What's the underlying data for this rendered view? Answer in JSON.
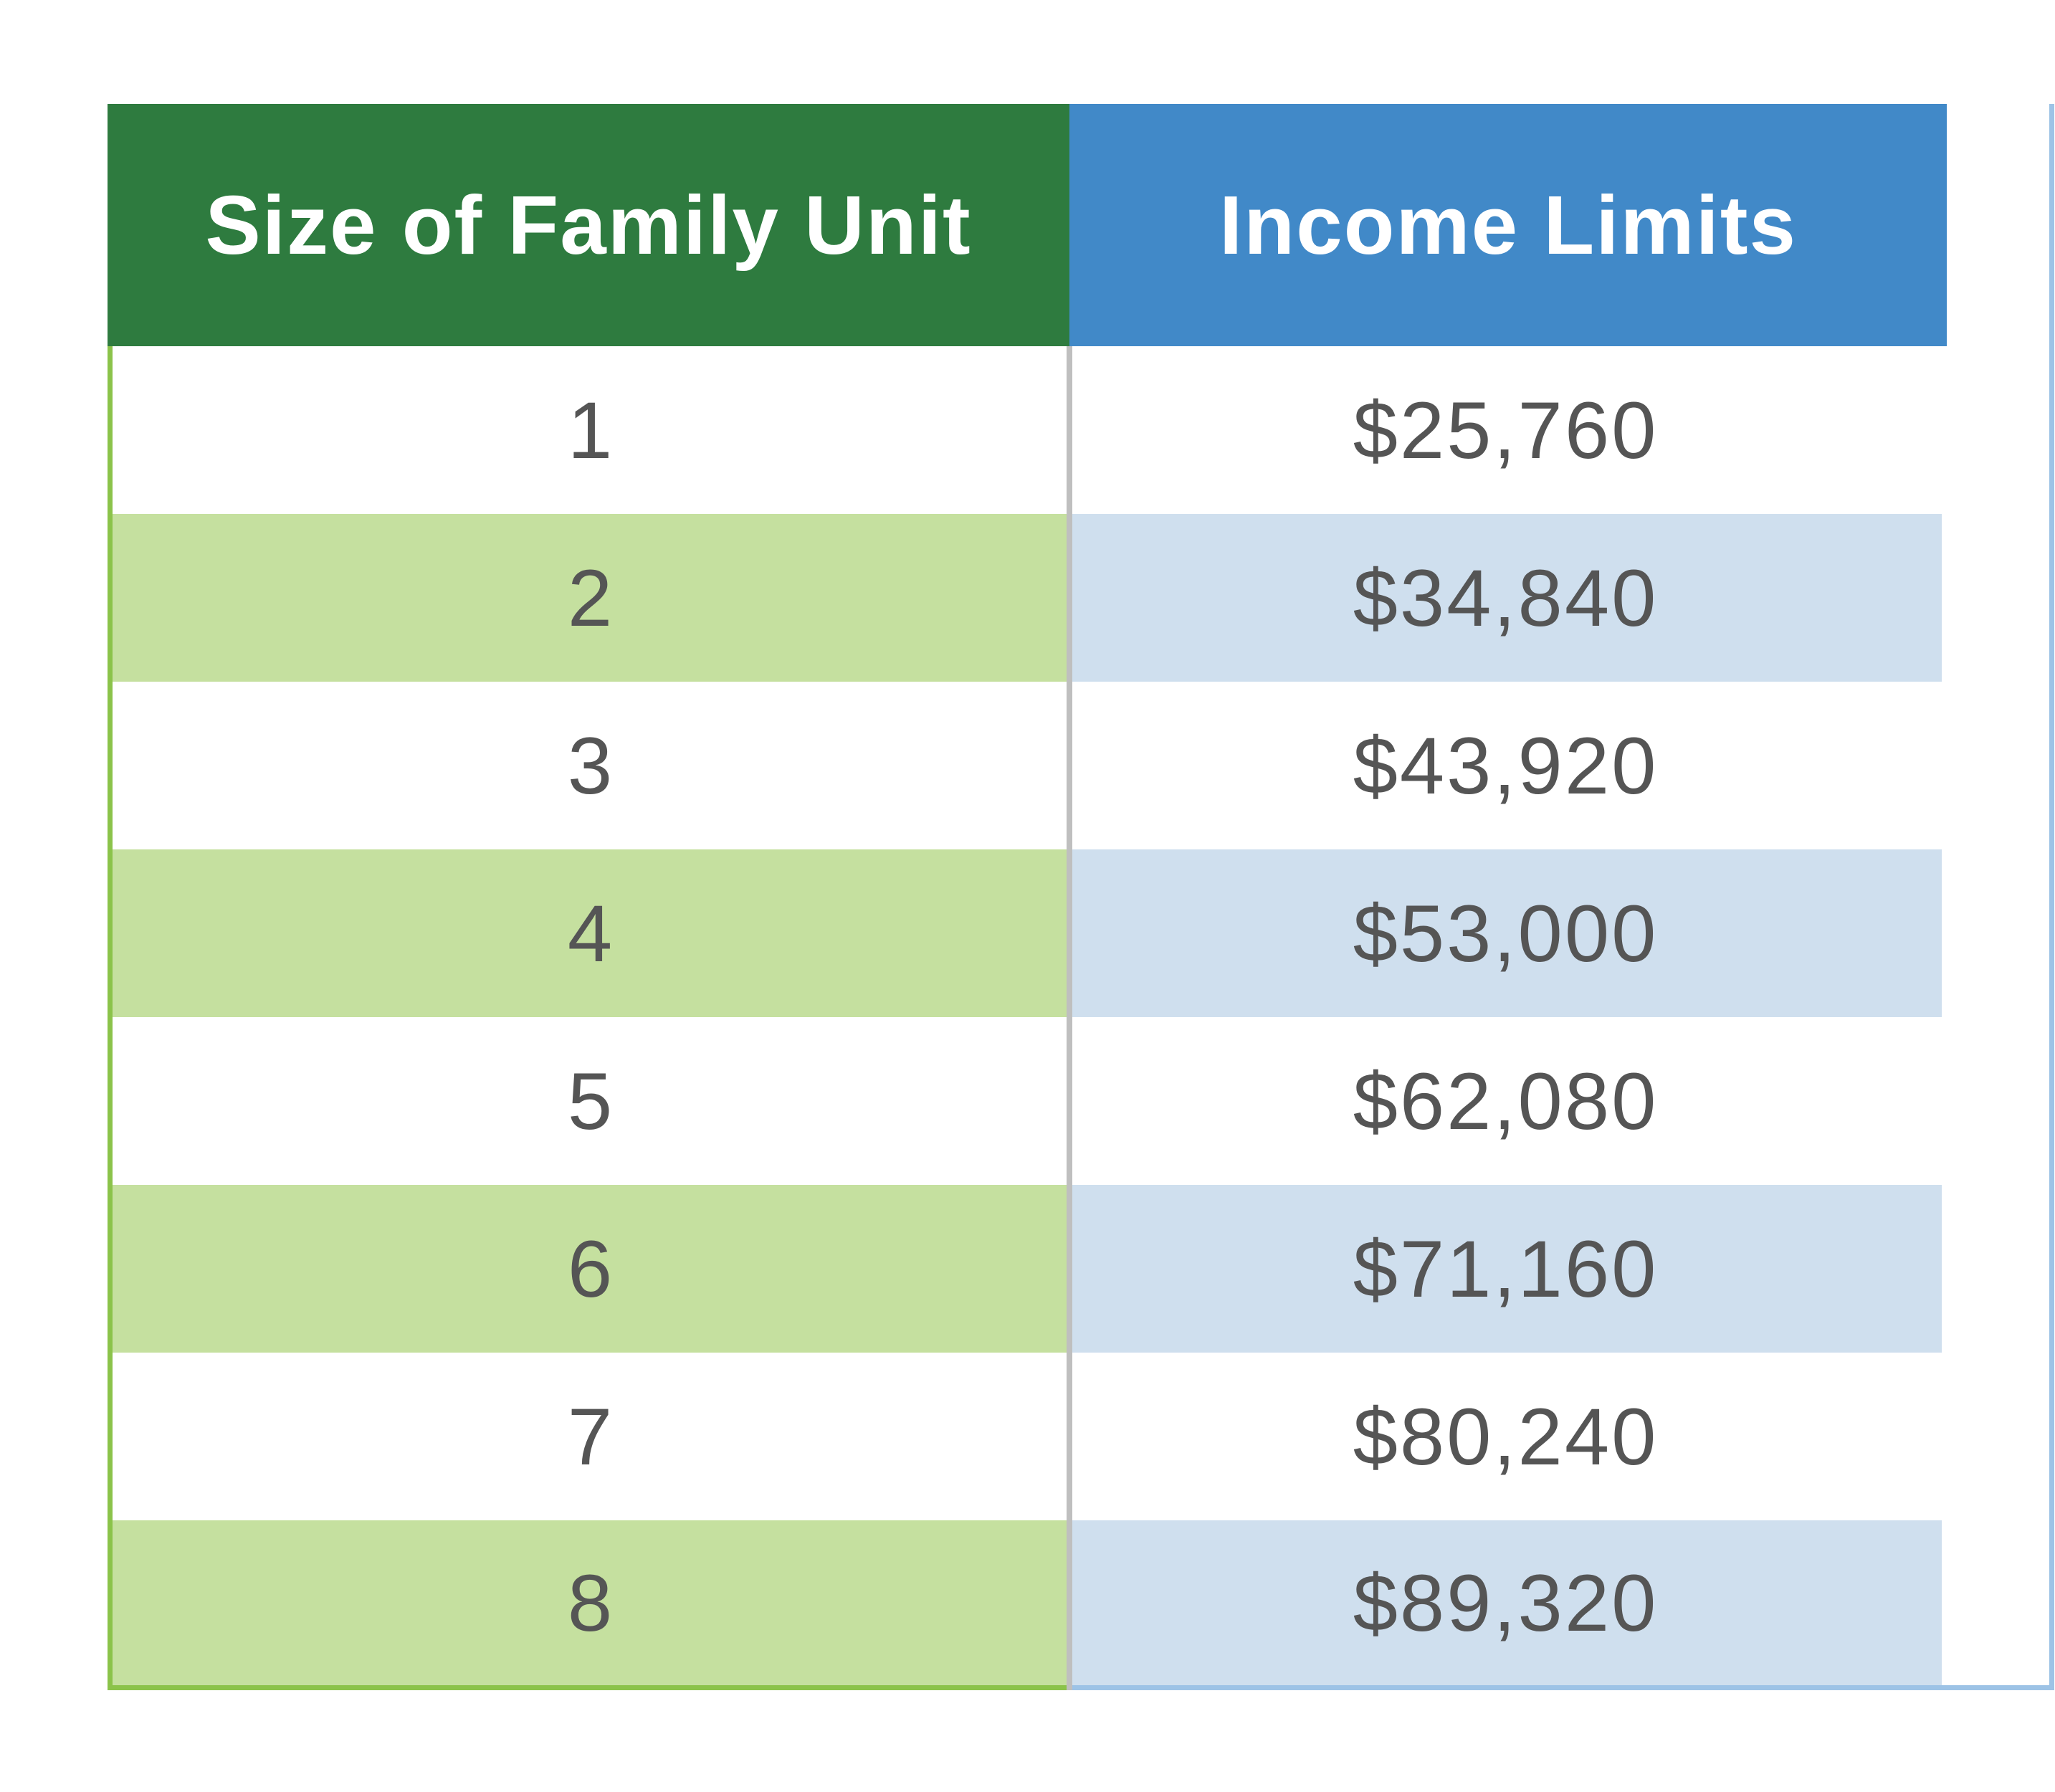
{
  "table": {
    "headers": [
      "Size of Family Unit",
      "Income Limits"
    ],
    "rows": [
      {
        "size": "1",
        "limit": "$25,760"
      },
      {
        "size": "2",
        "limit": "$34,840"
      },
      {
        "size": "3",
        "limit": "$43,920"
      },
      {
        "size": "4",
        "limit": "$53,000"
      },
      {
        "size": "5",
        "limit": "$62,080"
      },
      {
        "size": "6",
        "limit": "$71,160"
      },
      {
        "size": "7",
        "limit": "$80,240"
      },
      {
        "size": "8",
        "limit": "$89,320"
      }
    ]
  },
  "colors": {
    "header_left": "#2e7b3f",
    "header_right": "#4189c8",
    "stripe_left": "#c5e09f",
    "stripe_right": "#cfdfee",
    "text": "#555555"
  }
}
